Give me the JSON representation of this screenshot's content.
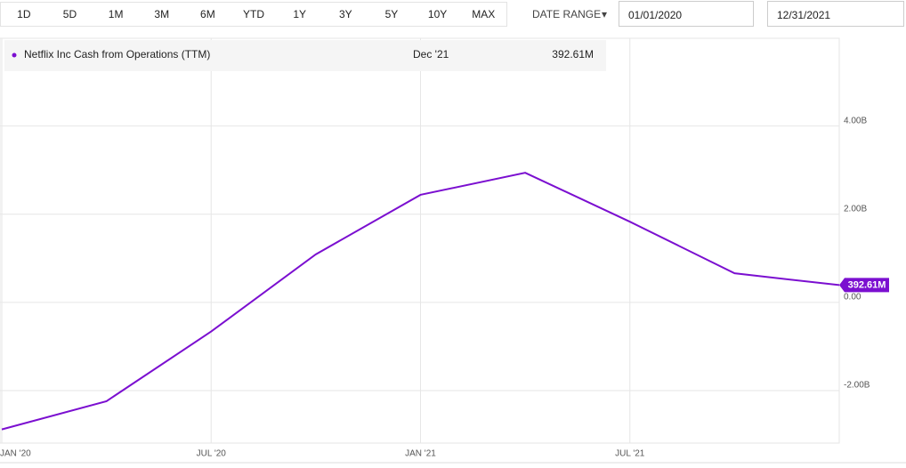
{
  "toolbar": {
    "ranges": [
      "1D",
      "5D",
      "1M",
      "3M",
      "6M",
      "YTD",
      "1Y",
      "3Y",
      "5Y",
      "10Y",
      "MAX"
    ],
    "date_range_label": "DATE RANGE",
    "start_date": "01/01/2020",
    "end_date": "12/31/2021"
  },
  "legend": {
    "date": "Dec '21",
    "value": "392.61M"
  },
  "chart_data": {
    "type": "line",
    "categories": [
      "JAN '20",
      null,
      "JUL '20",
      null,
      "JAN '21",
      null,
      "JUL '21",
      null,
      null
    ],
    "series": [
      {
        "name": "Netflix Inc Cash from Operations (TTM)",
        "color": "#7b0fd0",
        "values": [
          -2.88,
          -2.24,
          -0.66,
          1.09,
          2.44,
          2.94,
          1.83,
          0.66,
          0.39261
        ],
        "value_labels": [
          null,
          null,
          null,
          null,
          null,
          null,
          null,
          null,
          "392.61M"
        ]
      }
    ],
    "ylim": [
      -3.19,
      5.99
    ],
    "yticks": [
      {
        "value": -2,
        "label": "-2.00B"
      },
      {
        "value": 0,
        "label": "0.00"
      },
      {
        "value": 2,
        "label": "2.00B"
      },
      {
        "value": 4,
        "label": "4.00B"
      }
    ],
    "grid": true
  }
}
